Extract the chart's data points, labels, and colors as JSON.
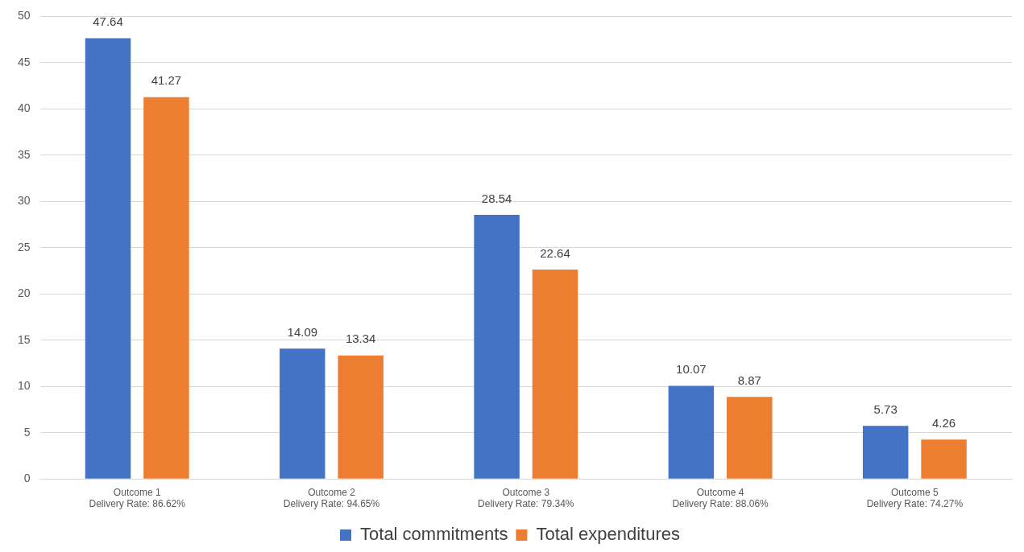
{
  "chart_data": {
    "type": "bar",
    "categories": [
      "Outcome 1\nDelivery Rate: 86.62%",
      "Outcome 2\nDelivery Rate: 94.65%",
      "Outcome 3\nDelivery Rate: 79.34%",
      "Outcome 4\nDelivery Rate: 88.06%",
      "Outcome 5\nDelivery Rate: 74.27%"
    ],
    "series": [
      {
        "name": "Total commitments",
        "color": "#4472c4",
        "values": [
          47.64,
          14.09,
          28.54,
          10.07,
          5.73
        ]
      },
      {
        "name": "Total expenditures",
        "color": "#ed7d31",
        "values": [
          41.27,
          13.34,
          22.64,
          8.87,
          4.26
        ]
      }
    ],
    "ylim": [
      0,
      50
    ],
    "yticks": [
      0,
      5,
      10,
      15,
      20,
      25,
      30,
      35,
      40,
      45,
      50
    ],
    "grid": "y",
    "legend": "bottom",
    "data_labels": true
  }
}
